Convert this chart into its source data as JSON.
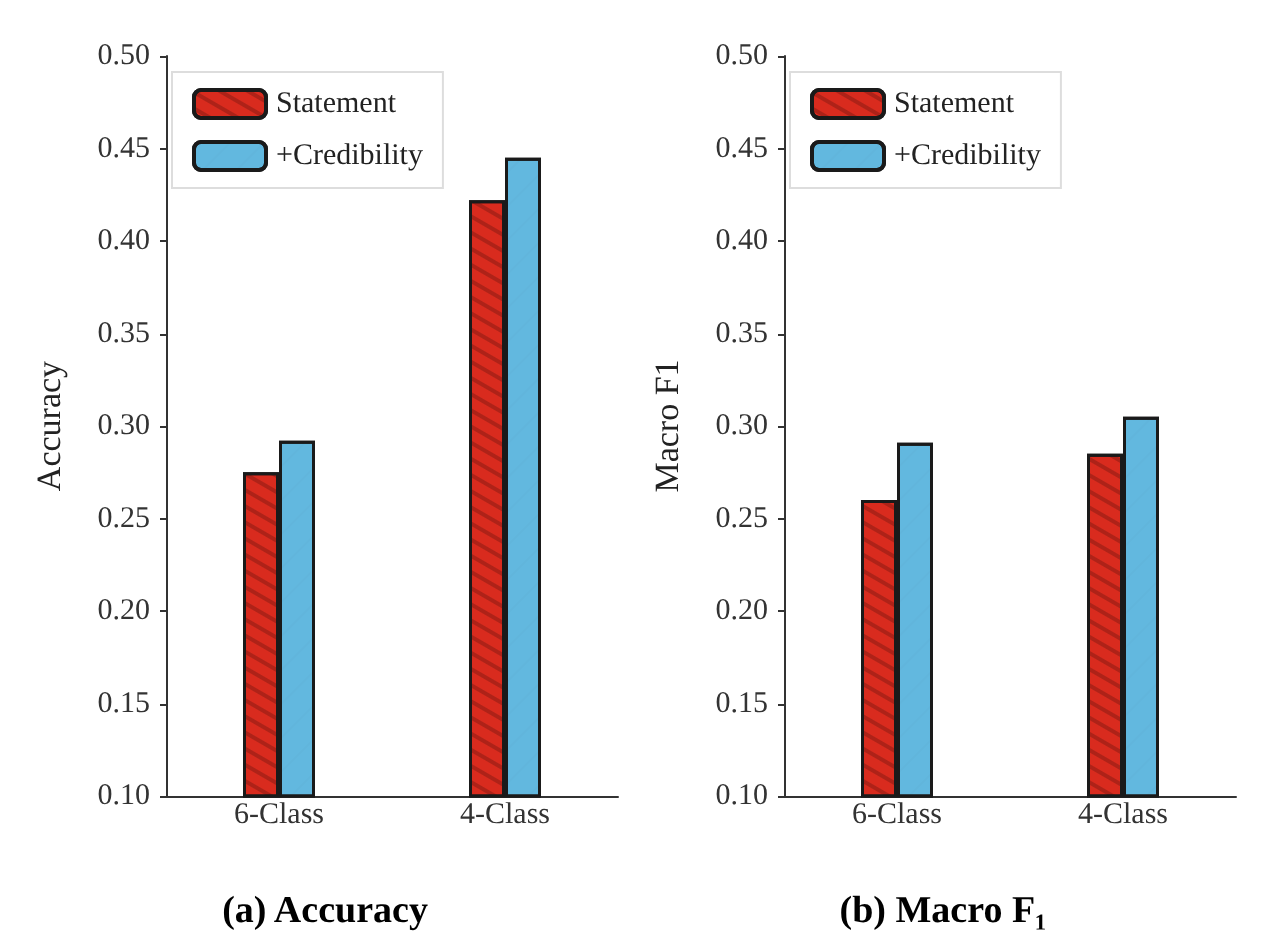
{
  "chart_data": [
    {
      "type": "bar",
      "title": "(a) Accuracy",
      "ylabel": "Accuracy",
      "categories": [
        "6-Class",
        "4-Class"
      ],
      "series": [
        {
          "name": "Statement",
          "color": "#d92b1e",
          "values": [
            0.275,
            0.422
          ]
        },
        {
          "name": "+Credibility",
          "color": "#62b8df",
          "values": [
            0.292,
            0.445
          ]
        }
      ],
      "ylim": [
        0.1,
        0.5
      ],
      "yticks": [
        {
          "value": 0.1,
          "label": "0.10"
        },
        {
          "value": 0.15,
          "label": "0.15"
        },
        {
          "value": 0.2,
          "label": "0.20"
        },
        {
          "value": 0.25,
          "label": "0.25"
        },
        {
          "value": 0.3,
          "label": "0.30"
        },
        {
          "value": 0.35,
          "label": "0.35"
        },
        {
          "value": 0.4,
          "label": "0.40"
        },
        {
          "value": 0.45,
          "label": "0.45"
        },
        {
          "value": 0.5,
          "label": "0.50"
        }
      ],
      "legend": "top left",
      "grid": false
    },
    {
      "type": "bar",
      "title": "(b) Macro F₁",
      "ylabel": "Macro F1",
      "categories": [
        "6-Class",
        "4-Class"
      ],
      "series": [
        {
          "name": "Statement",
          "color": "#d92b1e",
          "values": [
            0.26,
            0.285
          ]
        },
        {
          "name": "+Credibility",
          "color": "#62b8df",
          "values": [
            0.291,
            0.305
          ]
        }
      ],
      "ylim": [
        0.1,
        0.5
      ],
      "yticks": [
        {
          "value": 0.1,
          "label": "0.10"
        },
        {
          "value": 0.15,
          "label": "0.15"
        },
        {
          "value": 0.2,
          "label": "0.20"
        },
        {
          "value": 0.25,
          "label": "0.25"
        },
        {
          "value": 0.3,
          "label": "0.30"
        },
        {
          "value": 0.35,
          "label": "0.35"
        },
        {
          "value": 0.4,
          "label": "0.40"
        },
        {
          "value": 0.45,
          "label": "0.45"
        },
        {
          "value": 0.5,
          "label": "0.50"
        }
      ],
      "legend": "top left",
      "grid": false
    }
  ]
}
